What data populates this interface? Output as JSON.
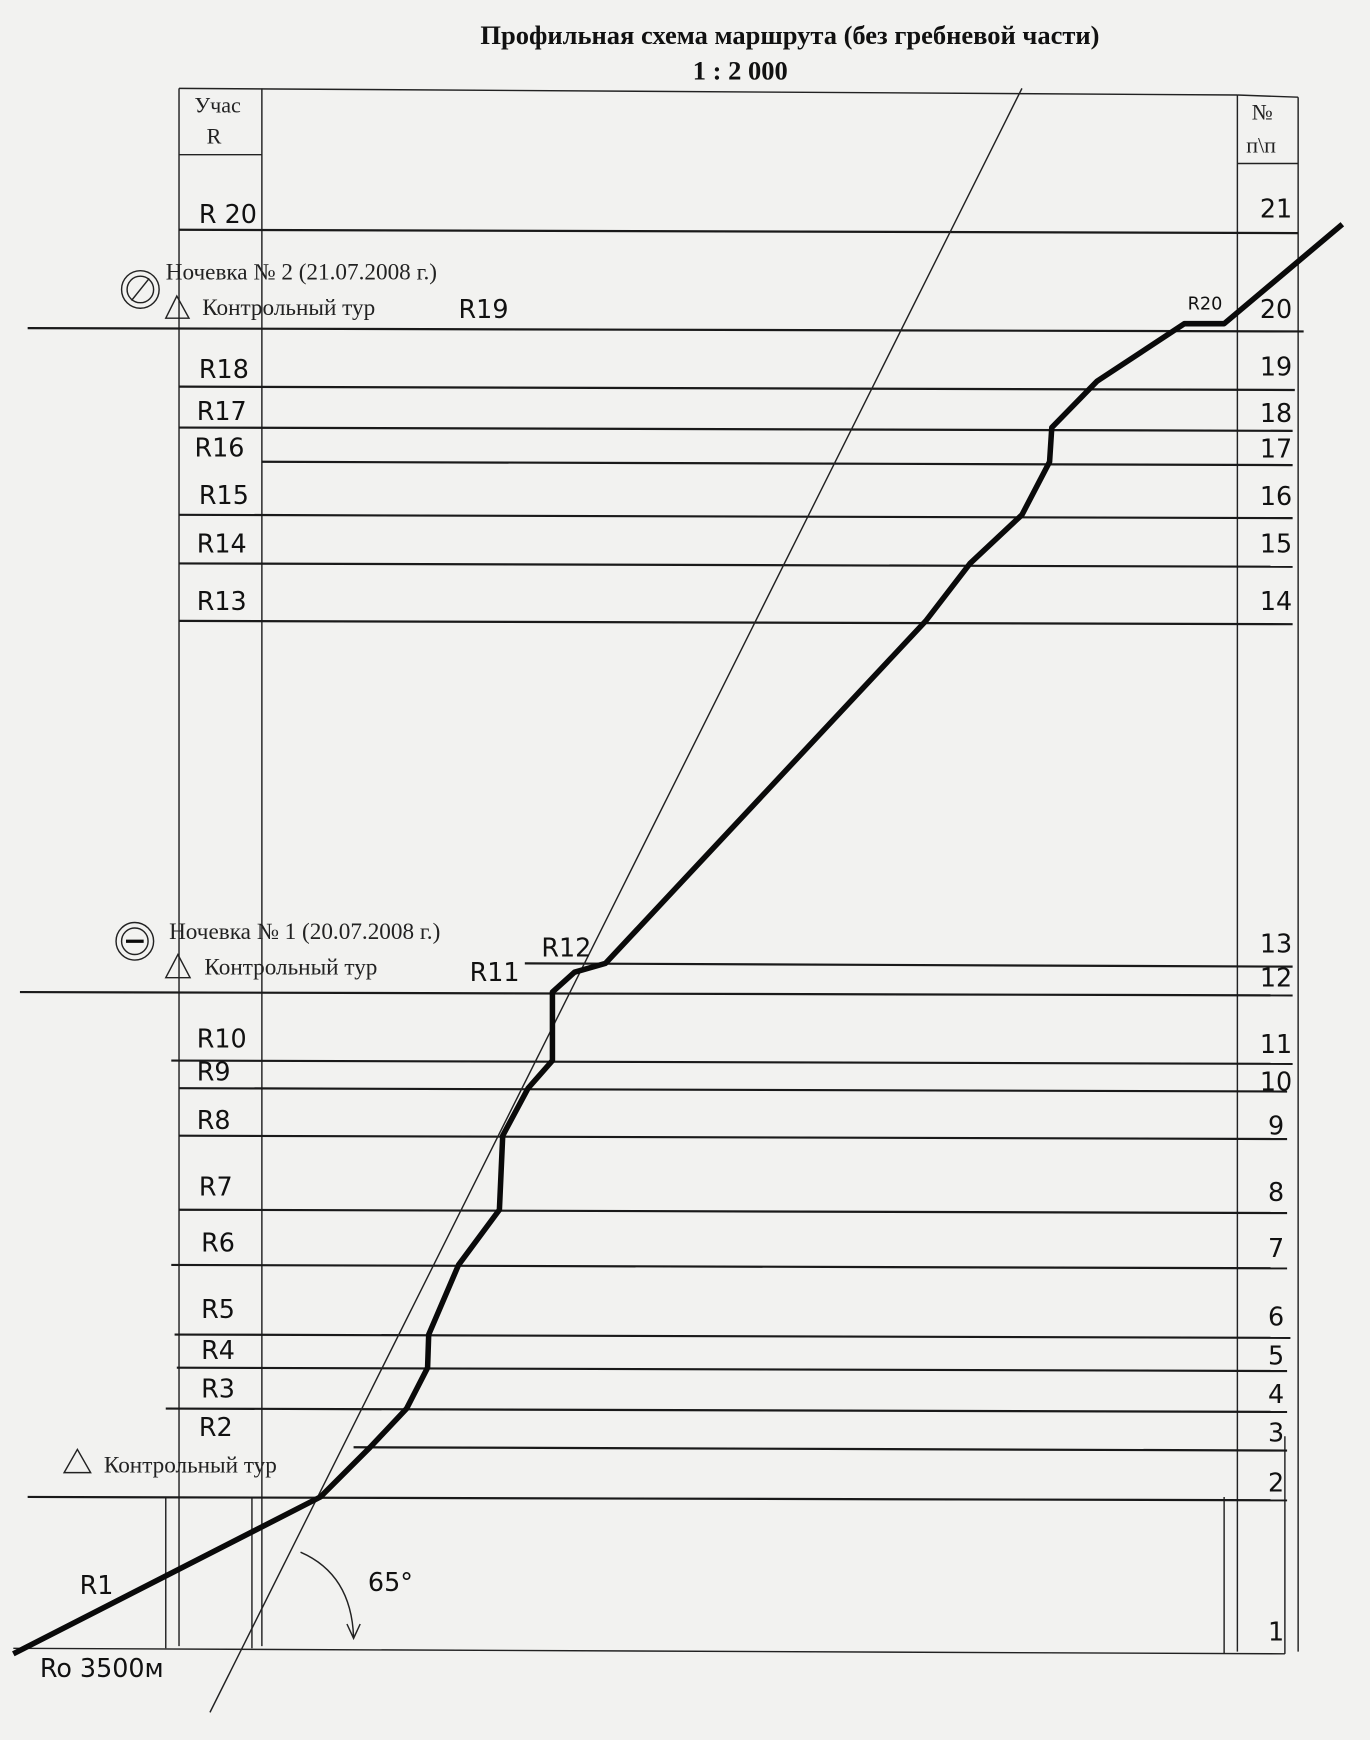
{
  "title": "Профильная схема маршрута (без гребневой части)",
  "scale": "1 : 2 000",
  "left_header": {
    "line1": "Учас",
    "line2": "R"
  },
  "right_header": {
    "line1": "№",
    "line2": "п\\п"
  },
  "segment_labels": [
    "R 20",
    "R18",
    "R17",
    "R16",
    "R15",
    "R14",
    "R13",
    "R12",
    "R11",
    "R10",
    "R9",
    "R8",
    "R7",
    "R6",
    "R5",
    "R4",
    "R3",
    "R2",
    "R1",
    "R19",
    "R20"
  ],
  "start_label": "Ro  3500м",
  "row_numbers": [
    "21",
    "20",
    "19",
    "18",
    "17",
    "16",
    "15",
    "14",
    "13",
    "12",
    "11",
    "10",
    "9",
    "8",
    "7",
    "6",
    "5",
    "4",
    "3",
    "2",
    "1"
  ],
  "annotations": {
    "bivouac2": "Ночевка № 2   (21.07.2008 г.)",
    "bivouac1": "Ночевка № 1   (20.07.2008 г.)",
    "control_tour": "Контрольный тур",
    "angle": "65°"
  },
  "icons": {
    "bivouac2": "circle-slash-icon",
    "bivouac1": "circle-bar-icon",
    "control": "triangle-icon"
  }
}
